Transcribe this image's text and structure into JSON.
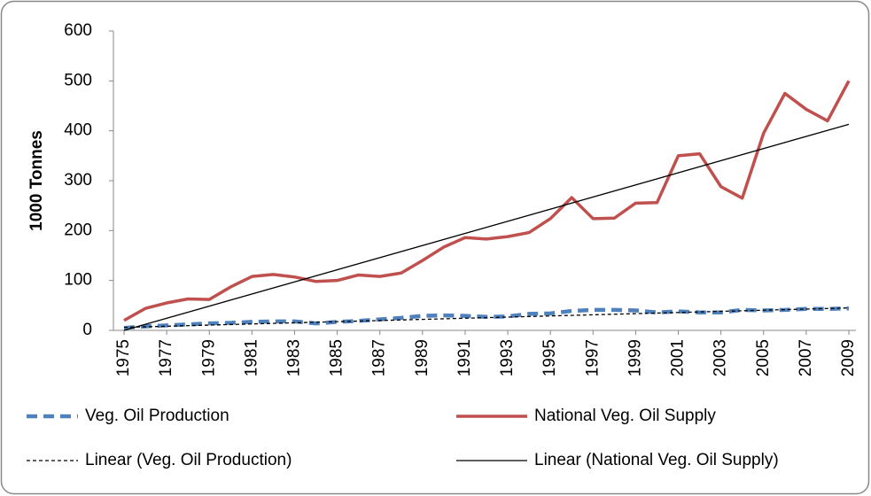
{
  "chart_data": {
    "type": "line",
    "ylabel": "1000 Tonnes",
    "x": [
      1975,
      1976,
      1977,
      1978,
      1979,
      1980,
      1981,
      1982,
      1983,
      1984,
      1985,
      1986,
      1987,
      1988,
      1989,
      1990,
      1991,
      1992,
      1993,
      1994,
      1995,
      1996,
      1997,
      1998,
      1999,
      2000,
      2001,
      2002,
      2003,
      2004,
      2005,
      2006,
      2007,
      2008,
      2009
    ],
    "xlim": [
      1975,
      2009
    ],
    "xticks": [
      1975,
      1977,
      1979,
      1981,
      1983,
      1985,
      1987,
      1989,
      1991,
      1993,
      1995,
      1997,
      1999,
      2001,
      2003,
      2005,
      2007,
      2009
    ],
    "ylim": [
      0,
      600
    ],
    "yticks": [
      0,
      100,
      200,
      300,
      400,
      500,
      600
    ],
    "grid": false,
    "legend": "bottom",
    "series": [
      {
        "name": "Veg. Oil Production",
        "color": "#4f81bd",
        "dashed": true,
        "values": [
          5,
          8,
          10,
          12,
          14,
          15,
          17,
          18,
          18,
          14,
          17,
          19,
          22,
          25,
          29,
          30,
          29,
          27,
          28,
          33,
          34,
          39,
          41,
          41,
          40,
          36,
          38,
          36,
          36,
          41,
          40,
          41,
          43,
          43,
          44
        ]
      },
      {
        "name": "National Veg. Oil Supply",
        "color": "#c0504d",
        "dashed": false,
        "values": [
          20,
          44,
          55,
          63,
          62,
          87,
          108,
          112,
          107,
          98,
          100,
          111,
          108,
          115,
          140,
          167,
          186,
          183,
          188,
          196,
          224,
          266,
          224,
          225,
          255,
          256,
          350,
          354,
          288,
          265,
          395,
          475,
          443,
          420,
          500
        ]
      },
      {
        "name": "Linear (Veg. Oil Production)",
        "color": "#000000",
        "dashed": true,
        "trend": true,
        "x": [
          1975,
          2009
        ],
        "values": [
          6,
          45
        ]
      },
      {
        "name": "Linear (National Veg. Oil Supply)",
        "color": "#000000",
        "dashed": false,
        "trend": true,
        "x": [
          1975,
          2009
        ],
        "values": [
          0,
          413
        ]
      }
    ]
  }
}
